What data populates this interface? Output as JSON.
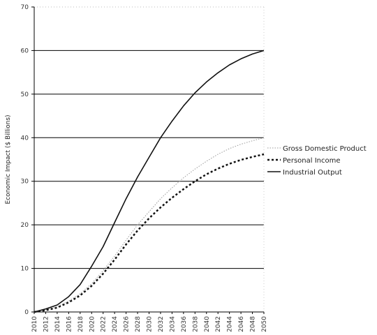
{
  "chart_data": {
    "type": "line",
    "title": "",
    "xlabel": "",
    "ylabel": "Economic Impact ($ Billions)",
    "ylim": [
      0,
      70
    ],
    "yticks": [
      0,
      10,
      20,
      30,
      40,
      50,
      60,
      70
    ],
    "grid": "horizontal",
    "legend_position": "right",
    "x": [
      2010,
      2012,
      2014,
      2016,
      2018,
      2020,
      2022,
      2024,
      2026,
      2028,
      2030,
      2032,
      2034,
      2036,
      2038,
      2040,
      2042,
      2044,
      2046,
      2048,
      2050
    ],
    "series": [
      {
        "name": "Gross Domestic Product",
        "style": "dotted-thin",
        "color": "#9a9a9a",
        "values": [
          0,
          0.5,
          1.2,
          2.5,
          4.2,
          6.5,
          9.5,
          12.8,
          16.5,
          20,
          23,
          26,
          28.5,
          30.8,
          32.8,
          34.6,
          36.2,
          37.5,
          38.5,
          39.3,
          40
        ]
      },
      {
        "name": "Personal Income",
        "style": "dotted-bold",
        "color": "#111111",
        "values": [
          0,
          0.4,
          1,
          2.2,
          3.8,
          6,
          8.8,
          12,
          15.5,
          18.7,
          21.5,
          24,
          26.2,
          28.2,
          30,
          31.6,
          32.9,
          34,
          34.9,
          35.6,
          36.2
        ]
      },
      {
        "name": "Industrial Output",
        "style": "solid",
        "color": "#111111",
        "values": [
          0,
          0.7,
          1.6,
          3.5,
          6.3,
          10.5,
          15,
          20.5,
          26,
          31,
          35.5,
          40,
          43.8,
          47.3,
          50.3,
          52.8,
          54.9,
          56.7,
          58.1,
          59.2,
          60
        ]
      }
    ]
  }
}
